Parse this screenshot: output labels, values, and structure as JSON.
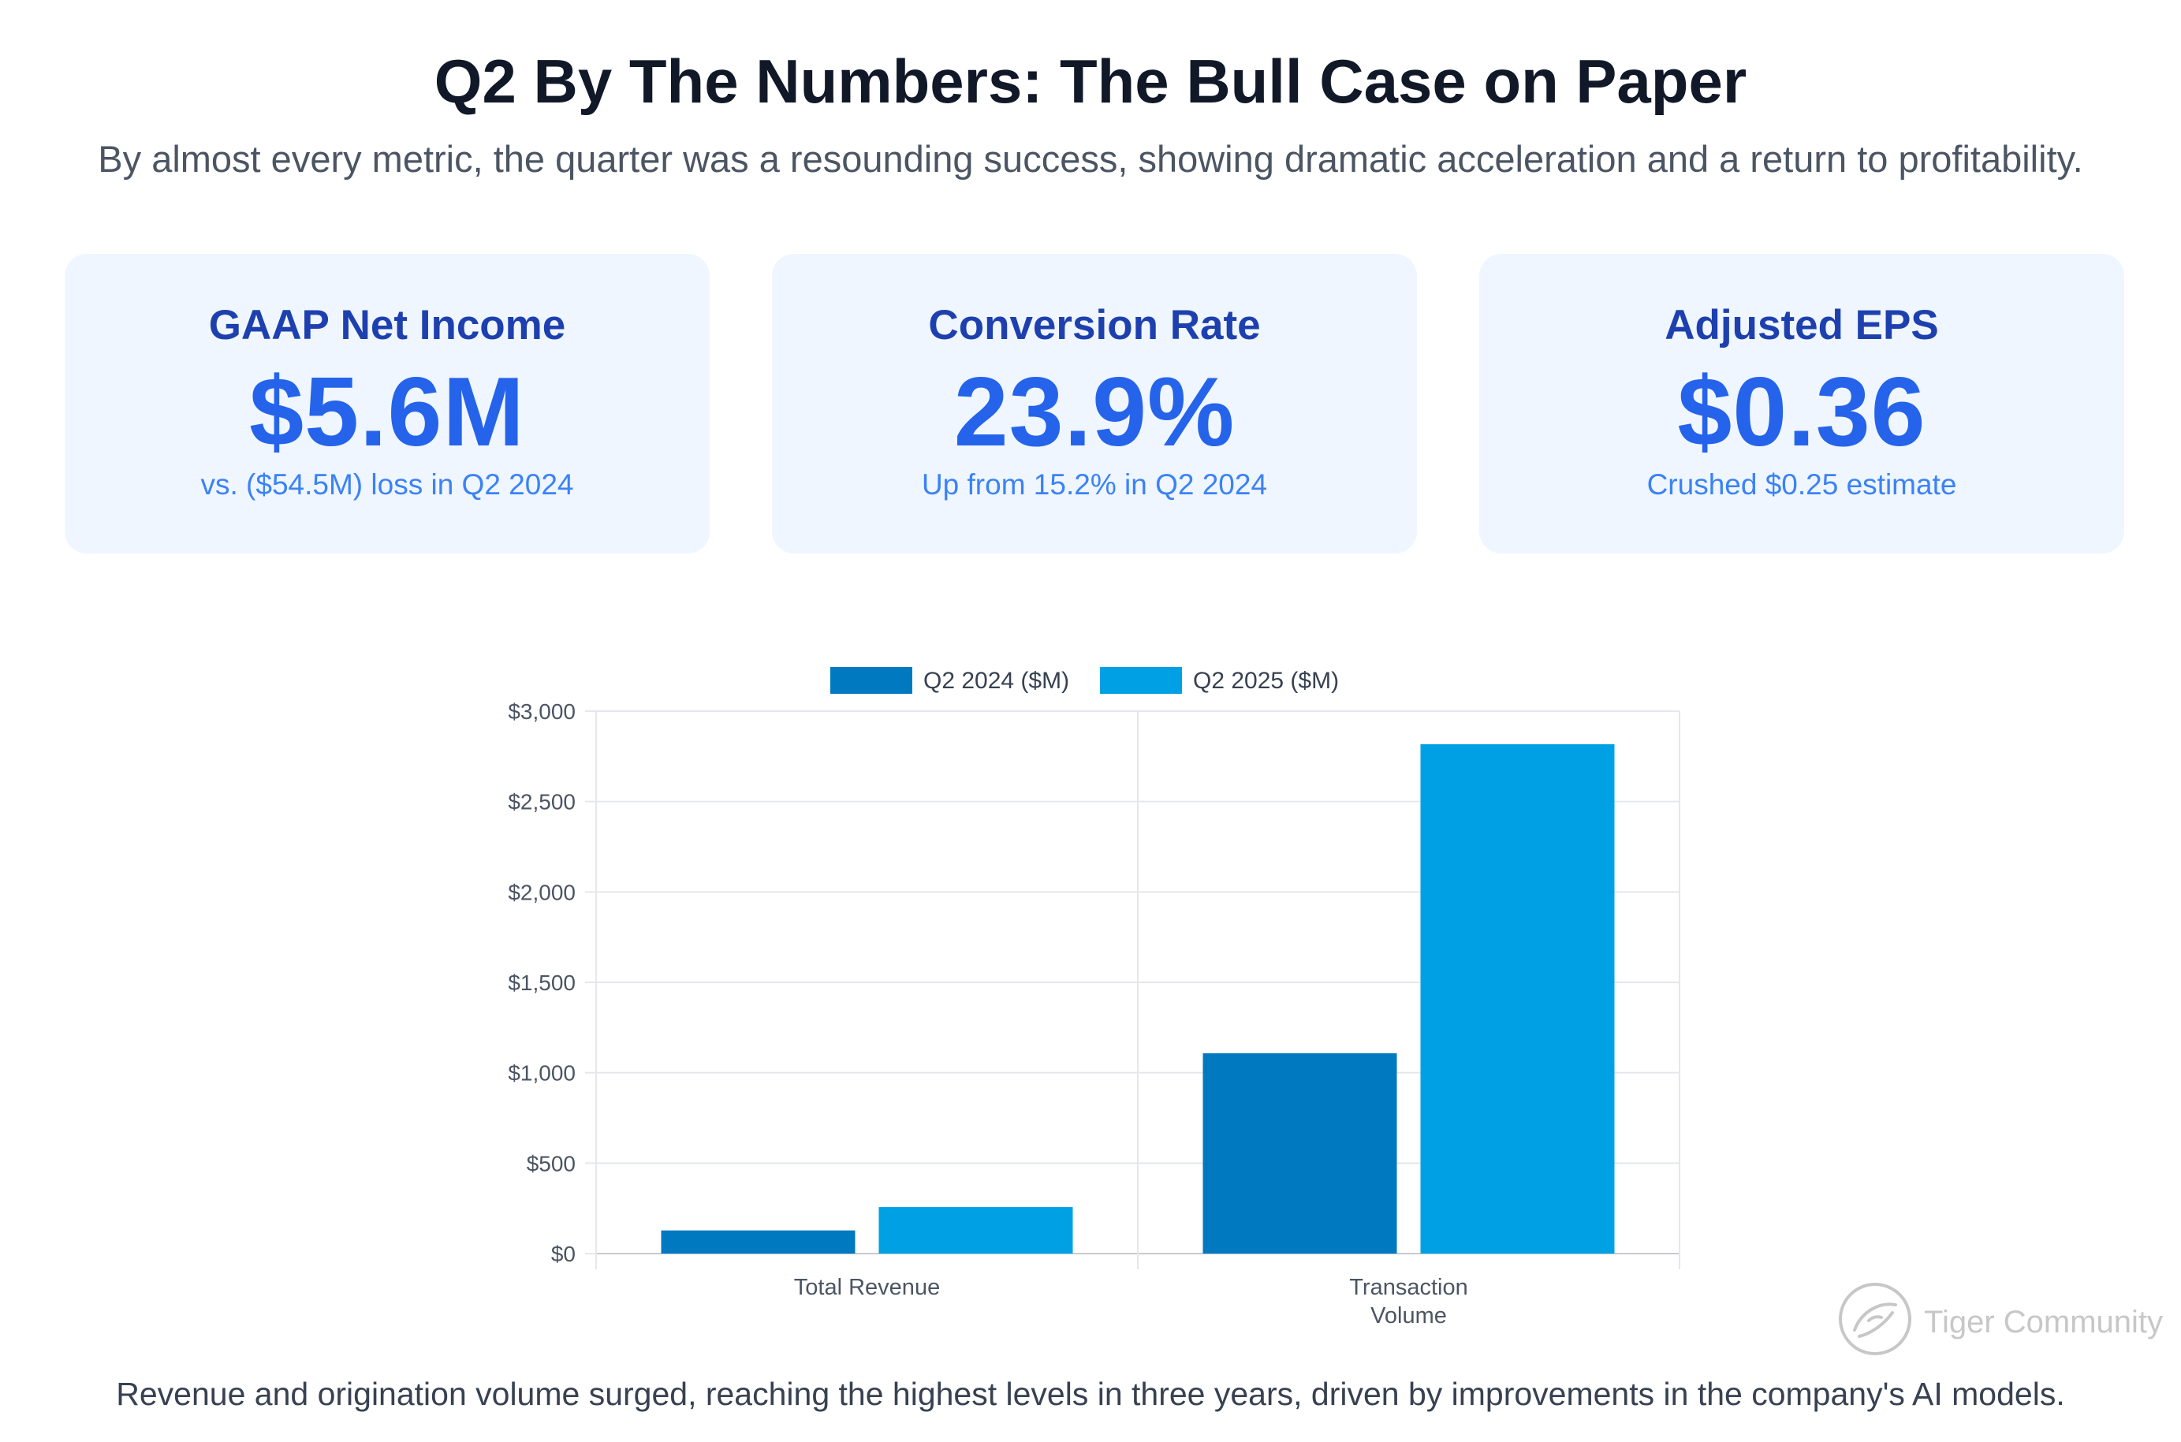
{
  "header": {
    "title": "Q2 By The Numbers: The Bull Case on Paper",
    "subtitle": "By almost every metric, the quarter was a resounding success, showing dramatic acceleration and a return to profitability."
  },
  "cards": [
    {
      "label": "GAAP Net Income",
      "value": "$5.6M",
      "note": "vs. ($54.5M) loss in Q2 2024"
    },
    {
      "label": "Conversion Rate",
      "value": "23.9%",
      "note": "Up from 15.2% in Q2 2024"
    },
    {
      "label": "Adjusted EPS",
      "value": "$0.36",
      "note": "Crushed $0.25 estimate"
    }
  ],
  "colors": {
    "series_2024": "#0079c1",
    "series_2025": "#00a1e4",
    "grid": "#e5e7eb",
    "axis_text": "#4b5563"
  },
  "chart_data": {
    "type": "bar",
    "categories": [
      [
        "Total Revenue"
      ],
      [
        "Transaction",
        "Volume"
      ]
    ],
    "series": [
      {
        "name": "Q2 2024 ($M)",
        "values": [
          128,
          1108
        ]
      },
      {
        "name": "Q2 2025 ($M)",
        "values": [
          257,
          2817
        ]
      }
    ],
    "ylim": [
      0,
      3000
    ],
    "yticks": [
      0,
      500,
      1000,
      1500,
      2000,
      2500,
      3000
    ],
    "ytick_labels": [
      "$0",
      "$500",
      "$1,000",
      "$1,500",
      "$2,000",
      "$2,500",
      "$3,000"
    ],
    "legend_position": "top-center",
    "grid": true
  },
  "caption": "Revenue and origination volume surged, reaching the highest levels in three years, driven by improvements in the company's AI models.",
  "watermark": {
    "text": "Tiger Community",
    "logo_icon": "tiger-logo-icon"
  }
}
